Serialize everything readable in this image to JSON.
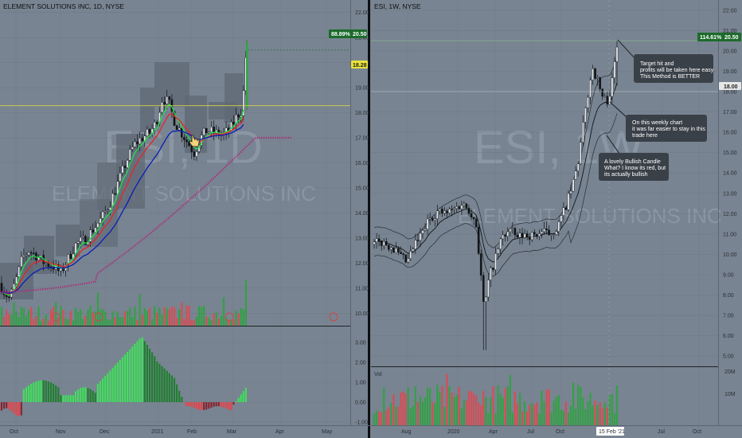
{
  "left": {
    "title": "ELEMENT SOLUTIONS INC, 1D, NYSE",
    "watermark_symbol": "ESI, 1D",
    "watermark_name": "ELEMENT SOLUTIONS INC",
    "price_tag_change": "88.89%",
    "price_tag_price": "20.50",
    "level_tag": "18.28",
    "y_ticks": [
      "22.00",
      "21.00",
      "20.00",
      "19.00",
      "18.00",
      "17.00",
      "16.00",
      "15.00",
      "14.00",
      "13.00",
      "12.00",
      "11.00",
      "10.00"
    ],
    "osc_ticks": [
      "3.00",
      "2.00",
      "1.00",
      "0.00",
      "-1.00"
    ],
    "x_ticks": [
      "Oct",
      "Nov",
      "Dec",
      "2021",
      "Feb",
      "Mar",
      "Apr",
      "May"
    ]
  },
  "right": {
    "title": "ESI, 1W, NYSE",
    "watermark_symbol": "ESI, 1W",
    "watermark_name": "ELEMENT SOLUTIONS INC",
    "price_tag_change": "114.61%",
    "price_tag_price": "20.50",
    "level_tag": "18.00",
    "volume_label": "Vol",
    "y_ticks": [
      "22.00",
      "21.00",
      "20.00",
      "19.00",
      "18.00",
      "17.00",
      "16.00",
      "15.00",
      "14.00",
      "13.00",
      "12.00",
      "11.00",
      "10.00",
      "9.00",
      "8.00",
      "7.00",
      "6.00",
      "5.00"
    ],
    "vol_ticks": [
      "20M",
      "10M"
    ],
    "x_ticks": [
      "Aug",
      "2020",
      "Apr",
      "Jul",
      "Oct",
      "Jul",
      "Oct"
    ],
    "date_tag": "15 Feb '21",
    "notes": [
      "Target hit and\nprofits will be taken here easy\nThis Method is BETTER",
      "On this weekly chart\nit was far easier to stay in this\ntrade here",
      "A lovely Bullish Candle\nWhat? I know its  red, but\nits actually bullish"
    ]
  },
  "colors": {
    "background": "#788491",
    "up": "#26a637",
    "down": "#e8434a",
    "green_line": "#22e04a",
    "red_line": "#e8242a",
    "blue_line": "#0a1fb5",
    "purple_line": "#b0267a",
    "yellow_line": "#e8e23a",
    "tag_green": "#1c6b2c"
  }
}
